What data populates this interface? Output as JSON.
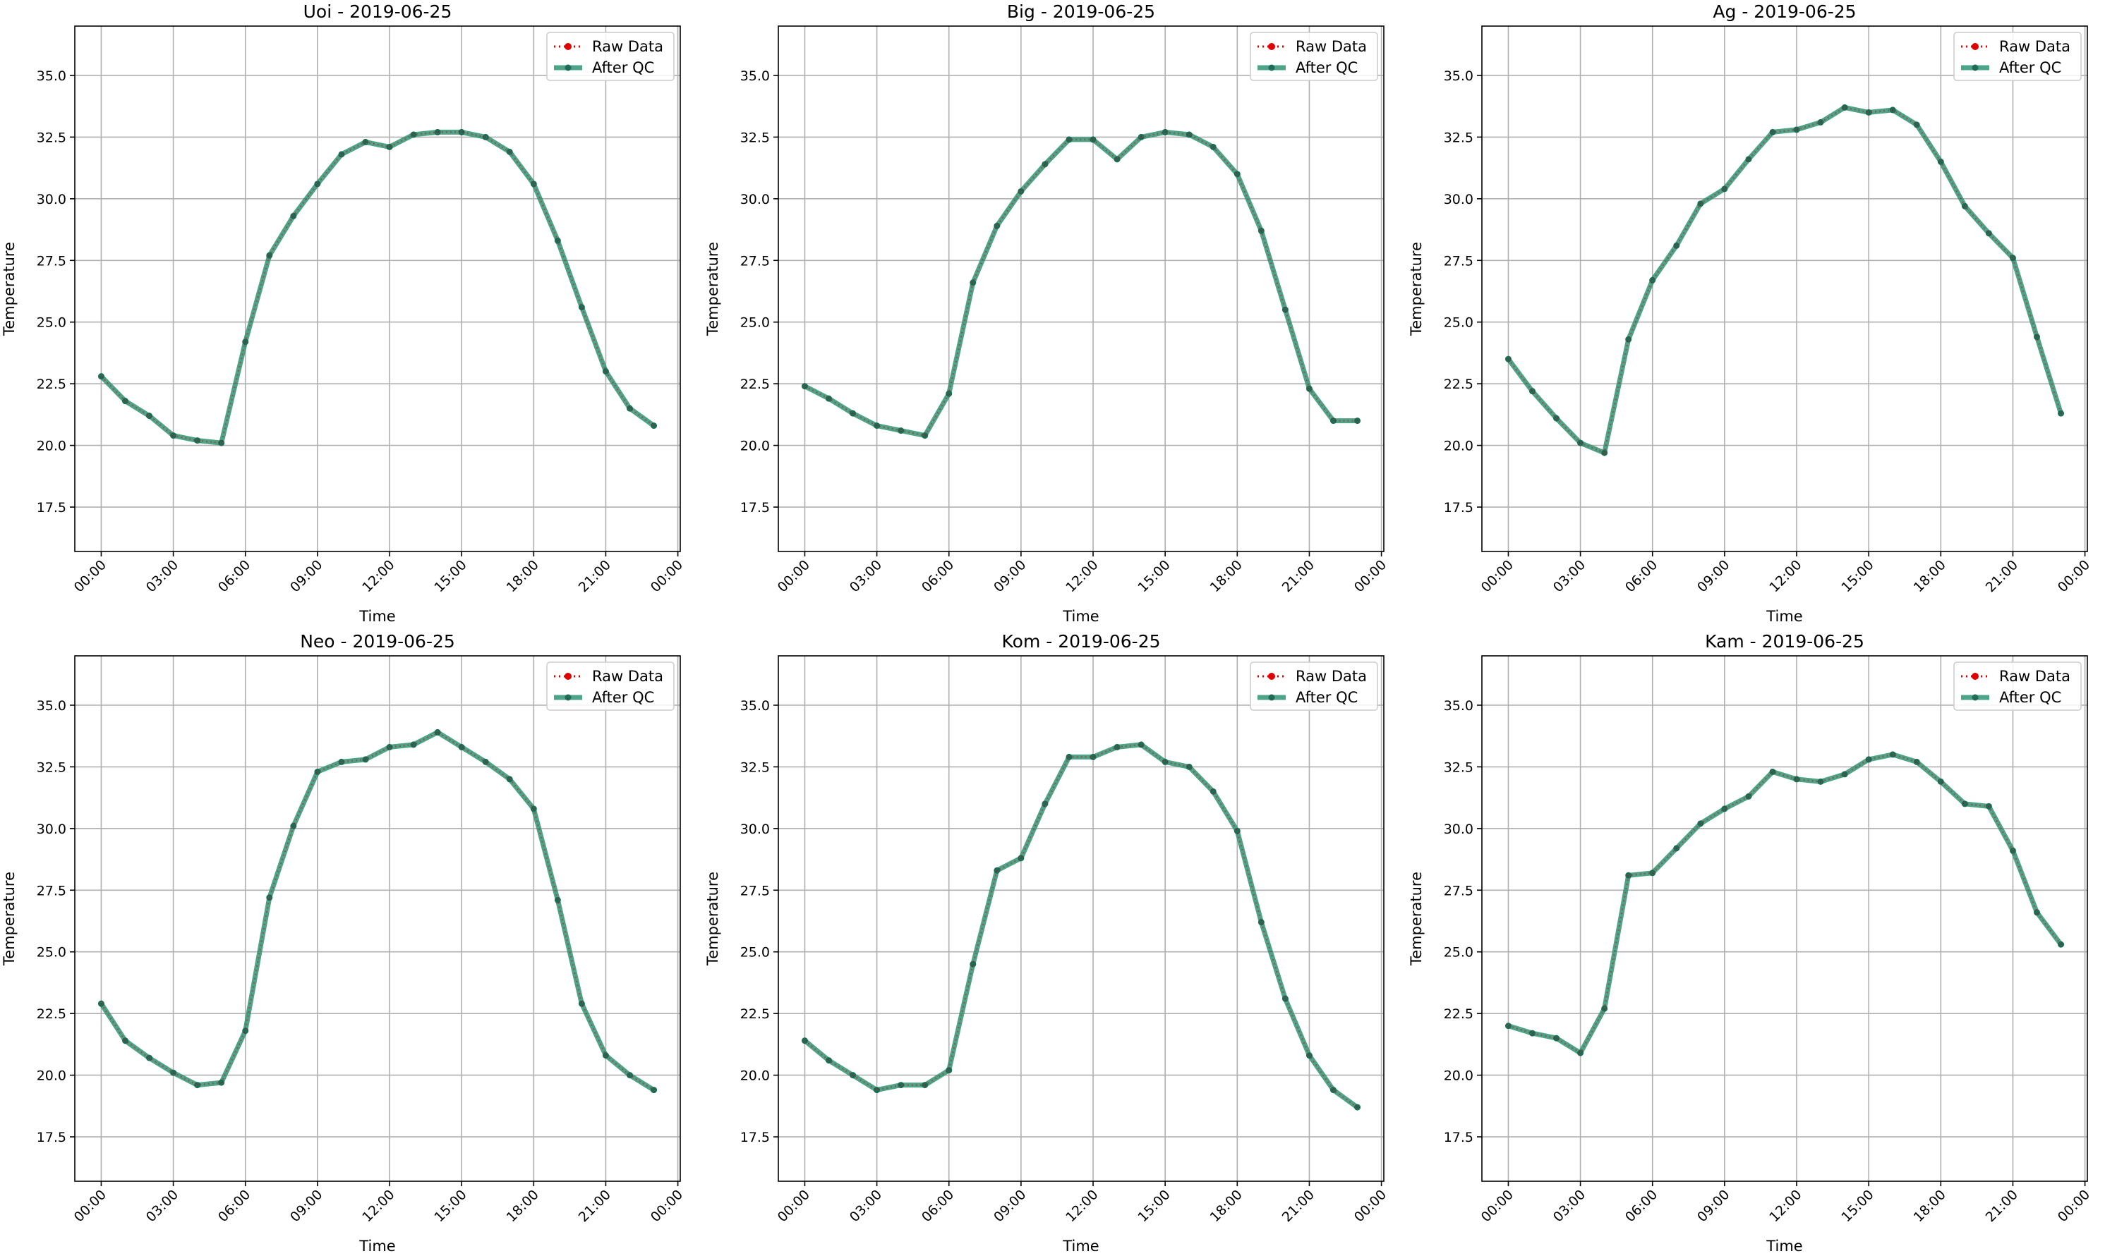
{
  "colors": {
    "raw": "#e00000",
    "after_qc": "#2e9474",
    "marker_after": "#1f6b55",
    "grid": "#b0b0b0",
    "frame": "#000000"
  },
  "legend_labels": {
    "raw": "Raw Data",
    "after_qc": "After QC"
  },
  "chart_data": [
    {
      "type": "line",
      "title": "Uoi - 2019-06-25",
      "xlabel": "Time",
      "ylabel": "Temperature",
      "x": [
        0,
        1,
        2,
        3,
        4,
        5,
        6,
        7,
        8,
        9,
        10,
        11,
        12,
        13,
        14,
        15,
        16,
        17,
        18,
        19,
        20,
        21,
        22,
        23
      ],
      "xticks": [
        0,
        3,
        6,
        9,
        12,
        15,
        18,
        21,
        24
      ],
      "xtick_labels": [
        "00:00",
        "03:00",
        "06:00",
        "09:00",
        "12:00",
        "15:00",
        "18:00",
        "21:00",
        "00:00"
      ],
      "xlim": [
        -1.1,
        24.1
      ],
      "ylim": [
        15.7,
        37.0
      ],
      "yticks": [
        17.5,
        20.0,
        22.5,
        25.0,
        27.5,
        30.0,
        32.5,
        35.0
      ],
      "ytick_labels": [
        "17.5",
        "20.0",
        "22.5",
        "25.0",
        "27.5",
        "30.0",
        "32.5",
        "35.0"
      ],
      "grid": true,
      "legend": "top-right",
      "series": [
        {
          "name": "Raw Data",
          "values": [
            22.8,
            21.8,
            21.2,
            20.4,
            20.2,
            20.1,
            24.2,
            27.7,
            29.3,
            30.6,
            31.8,
            32.3,
            32.1,
            32.6,
            32.7,
            32.7,
            32.5,
            31.9,
            30.6,
            28.3,
            25.6,
            23.0,
            21.5,
            20.8
          ]
        },
        {
          "name": "After QC",
          "values": [
            22.8,
            21.8,
            21.2,
            20.4,
            20.2,
            20.1,
            24.2,
            27.7,
            29.3,
            30.6,
            31.8,
            32.3,
            32.1,
            32.6,
            32.7,
            32.7,
            32.5,
            31.9,
            30.6,
            28.3,
            25.6,
            23.0,
            21.5,
            20.8
          ]
        }
      ]
    },
    {
      "type": "line",
      "title": "Big - 2019-06-25",
      "xlabel": "Time",
      "ylabel": "Temperature",
      "x": [
        0,
        1,
        2,
        3,
        4,
        5,
        6,
        7,
        8,
        9,
        10,
        11,
        12,
        13,
        14,
        15,
        16,
        17,
        18,
        19,
        20,
        21,
        22,
        23
      ],
      "xticks": [
        0,
        3,
        6,
        9,
        12,
        15,
        18,
        21,
        24
      ],
      "xtick_labels": [
        "00:00",
        "03:00",
        "06:00",
        "09:00",
        "12:00",
        "15:00",
        "18:00",
        "21:00",
        "00:00"
      ],
      "xlim": [
        -1.1,
        24.1
      ],
      "ylim": [
        15.7,
        37.0
      ],
      "yticks": [
        17.5,
        20.0,
        22.5,
        25.0,
        27.5,
        30.0,
        32.5,
        35.0
      ],
      "ytick_labels": [
        "17.5",
        "20.0",
        "22.5",
        "25.0",
        "27.5",
        "30.0",
        "32.5",
        "35.0"
      ],
      "grid": true,
      "legend": "top-right",
      "series": [
        {
          "name": "Raw Data",
          "values": [
            22.4,
            21.9,
            21.3,
            20.8,
            20.6,
            20.4,
            22.1,
            26.6,
            28.9,
            30.3,
            31.4,
            32.4,
            32.4,
            31.6,
            32.5,
            32.7,
            32.6,
            32.1,
            31.0,
            28.7,
            25.5,
            22.3,
            21.0,
            21.0
          ]
        },
        {
          "name": "After QC",
          "values": [
            22.4,
            21.9,
            21.3,
            20.8,
            20.6,
            20.4,
            22.1,
            26.6,
            28.9,
            30.3,
            31.4,
            32.4,
            32.4,
            31.6,
            32.5,
            32.7,
            32.6,
            32.1,
            31.0,
            28.7,
            25.5,
            22.3,
            21.0,
            21.0
          ]
        }
      ]
    },
    {
      "type": "line",
      "title": "Ag - 2019-06-25",
      "xlabel": "Time",
      "ylabel": "Temperature",
      "x": [
        0,
        1,
        2,
        3,
        4,
        5,
        6,
        7,
        8,
        9,
        10,
        11,
        12,
        13,
        14,
        15,
        16,
        17,
        18,
        19,
        20,
        21,
        22,
        23
      ],
      "xticks": [
        0,
        3,
        6,
        9,
        12,
        15,
        18,
        21,
        24
      ],
      "xtick_labels": [
        "00:00",
        "03:00",
        "06:00",
        "09:00",
        "12:00",
        "15:00",
        "18:00",
        "21:00",
        "00:00"
      ],
      "xlim": [
        -1.1,
        24.1
      ],
      "ylim": [
        15.7,
        37.0
      ],
      "yticks": [
        17.5,
        20.0,
        22.5,
        25.0,
        27.5,
        30.0,
        32.5,
        35.0
      ],
      "ytick_labels": [
        "17.5",
        "20.0",
        "22.5",
        "25.0",
        "27.5",
        "30.0",
        "32.5",
        "35.0"
      ],
      "grid": true,
      "legend": "top-right",
      "series": [
        {
          "name": "Raw Data",
          "values": [
            23.5,
            22.2,
            21.1,
            20.1,
            19.7,
            24.3,
            26.7,
            28.1,
            29.8,
            30.4,
            31.6,
            32.7,
            32.8,
            33.1,
            33.7,
            33.5,
            33.6,
            33.0,
            31.5,
            29.7,
            28.6,
            27.6,
            24.4,
            21.3
          ]
        },
        {
          "name": "After QC",
          "values": [
            23.5,
            22.2,
            21.1,
            20.1,
            19.7,
            24.3,
            26.7,
            28.1,
            29.8,
            30.4,
            31.6,
            32.7,
            32.8,
            33.1,
            33.7,
            33.5,
            33.6,
            33.0,
            31.5,
            29.7,
            28.6,
            27.6,
            24.4,
            21.3
          ]
        }
      ]
    },
    {
      "type": "line",
      "title": "Neo - 2019-06-25",
      "xlabel": "Time",
      "ylabel": "Temperature",
      "x": [
        0,
        1,
        2,
        3,
        4,
        5,
        6,
        7,
        8,
        9,
        10,
        11,
        12,
        13,
        14,
        15,
        16,
        17,
        18,
        19,
        20,
        21,
        22,
        23
      ],
      "xticks": [
        0,
        3,
        6,
        9,
        12,
        15,
        18,
        21,
        24
      ],
      "xtick_labels": [
        "00:00",
        "03:00",
        "06:00",
        "09:00",
        "12:00",
        "15:00",
        "18:00",
        "21:00",
        "00:00"
      ],
      "xlim": [
        -1.1,
        24.1
      ],
      "ylim": [
        15.7,
        37.0
      ],
      "yticks": [
        17.5,
        20.0,
        22.5,
        25.0,
        27.5,
        30.0,
        32.5,
        35.0
      ],
      "ytick_labels": [
        "17.5",
        "20.0",
        "22.5",
        "25.0",
        "27.5",
        "30.0",
        "32.5",
        "35.0"
      ],
      "grid": true,
      "legend": "top-right",
      "series": [
        {
          "name": "Raw Data",
          "values": [
            22.9,
            21.4,
            20.7,
            20.1,
            19.6,
            19.7,
            21.8,
            27.2,
            30.1,
            32.3,
            32.7,
            32.8,
            33.3,
            33.4,
            33.9,
            33.3,
            32.7,
            32.0,
            30.8,
            27.1,
            22.9,
            20.8,
            20.0,
            19.4
          ]
        },
        {
          "name": "After QC",
          "values": [
            22.9,
            21.4,
            20.7,
            20.1,
            19.6,
            19.7,
            21.8,
            27.2,
            30.1,
            32.3,
            32.7,
            32.8,
            33.3,
            33.4,
            33.9,
            33.3,
            32.7,
            32.0,
            30.8,
            27.1,
            22.9,
            20.8,
            20.0,
            19.4
          ]
        }
      ]
    },
    {
      "type": "line",
      "title": "Kom - 2019-06-25",
      "xlabel": "Time",
      "ylabel": "Temperature",
      "x": [
        0,
        1,
        2,
        3,
        4,
        5,
        6,
        7,
        8,
        9,
        10,
        11,
        12,
        13,
        14,
        15,
        16,
        17,
        18,
        19,
        20,
        21,
        22,
        23
      ],
      "xticks": [
        0,
        3,
        6,
        9,
        12,
        15,
        18,
        21,
        24
      ],
      "xtick_labels": [
        "00:00",
        "03:00",
        "06:00",
        "09:00",
        "12:00",
        "15:00",
        "18:00",
        "21:00",
        "00:00"
      ],
      "xlim": [
        -1.1,
        24.1
      ],
      "ylim": [
        15.7,
        37.0
      ],
      "yticks": [
        17.5,
        20.0,
        22.5,
        25.0,
        27.5,
        30.0,
        32.5,
        35.0
      ],
      "ytick_labels": [
        "17.5",
        "20.0",
        "22.5",
        "25.0",
        "27.5",
        "30.0",
        "32.5",
        "35.0"
      ],
      "grid": true,
      "legend": "top-right",
      "series": [
        {
          "name": "Raw Data",
          "values": [
            21.4,
            20.6,
            20.0,
            19.4,
            19.6,
            19.6,
            20.2,
            24.5,
            28.3,
            28.8,
            31.0,
            32.9,
            32.9,
            33.3,
            33.4,
            32.7,
            32.5,
            31.5,
            29.9,
            26.2,
            23.1,
            20.8,
            19.4,
            18.7
          ]
        },
        {
          "name": "After QC",
          "values": [
            21.4,
            20.6,
            20.0,
            19.4,
            19.6,
            19.6,
            20.2,
            24.5,
            28.3,
            28.8,
            31.0,
            32.9,
            32.9,
            33.3,
            33.4,
            32.7,
            32.5,
            31.5,
            29.9,
            26.2,
            23.1,
            20.8,
            19.4,
            18.7
          ]
        }
      ]
    },
    {
      "type": "line",
      "title": "Kam - 2019-06-25",
      "xlabel": "Time",
      "ylabel": "Temperature",
      "x": [
        0,
        1,
        2,
        3,
        4,
        5,
        6,
        7,
        8,
        9,
        10,
        11,
        12,
        13,
        14,
        15,
        16,
        17,
        18,
        19,
        20,
        21,
        22,
        23
      ],
      "xticks": [
        0,
        3,
        6,
        9,
        12,
        15,
        18,
        21,
        24
      ],
      "xtick_labels": [
        "00:00",
        "03:00",
        "06:00",
        "09:00",
        "12:00",
        "15:00",
        "18:00",
        "21:00",
        "00:00"
      ],
      "xlim": [
        -1.1,
        24.1
      ],
      "ylim": [
        15.7,
        37.0
      ],
      "yticks": [
        17.5,
        20.0,
        22.5,
        25.0,
        27.5,
        30.0,
        32.5,
        35.0
      ],
      "ytick_labels": [
        "17.5",
        "20.0",
        "22.5",
        "25.0",
        "27.5",
        "30.0",
        "32.5",
        "35.0"
      ],
      "grid": true,
      "legend": "top-right",
      "series": [
        {
          "name": "Raw Data",
          "values": [
            22.0,
            21.7,
            21.5,
            20.9,
            22.7,
            28.1,
            28.2,
            29.2,
            30.2,
            30.8,
            31.3,
            32.3,
            32.0,
            31.9,
            32.2,
            32.8,
            33.0,
            32.7,
            31.9,
            31.0,
            30.9,
            29.1,
            26.6,
            25.3
          ]
        },
        {
          "name": "After QC",
          "values": [
            22.0,
            21.7,
            21.5,
            20.9,
            22.7,
            28.1,
            28.2,
            29.2,
            30.2,
            30.8,
            31.3,
            32.3,
            32.0,
            31.9,
            32.2,
            32.8,
            33.0,
            32.7,
            31.9,
            31.0,
            30.9,
            29.1,
            26.6,
            25.3
          ]
        }
      ]
    }
  ]
}
